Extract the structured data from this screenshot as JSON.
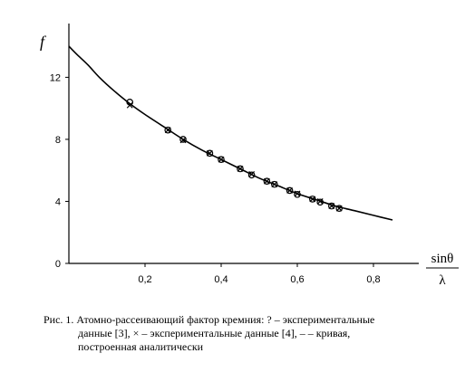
{
  "chart_data": {
    "type": "scatter",
    "xlabel": "sinθ/λ",
    "xlabel_num": "sinθ",
    "xlabel_den": "λ",
    "ylabel": "f",
    "xlim": [
      0,
      0.9
    ],
    "ylim": [
      0,
      15
    ],
    "x_ticks": [
      "0,2",
      "0,4",
      "0,6",
      "0,8"
    ],
    "x_tick_values": [
      0.2,
      0.4,
      0.6,
      0.8
    ],
    "y_ticks": [
      "0",
      "4",
      "8",
      "12"
    ],
    "y_tick_values": [
      0,
      4,
      8,
      12
    ],
    "grid": false,
    "series": [
      {
        "marker": "circle",
        "x": [
          0.16,
          0.26,
          0.3,
          0.37,
          0.4,
          0.45,
          0.48,
          0.52,
          0.54,
          0.58,
          0.6,
          0.64,
          0.66,
          0.69,
          0.71
        ],
        "y": [
          10.4,
          8.6,
          8.0,
          7.1,
          6.7,
          6.1,
          5.7,
          5.3,
          5.1,
          4.7,
          4.45,
          4.15,
          3.95,
          3.7,
          3.55
        ]
      },
      {
        "marker": "cross",
        "x": [
          0.16,
          0.26,
          0.3,
          0.37,
          0.4,
          0.45,
          0.48,
          0.52,
          0.54,
          0.58,
          0.6,
          0.64,
          0.66,
          0.69,
          0.71
        ],
        "y": [
          10.2,
          8.6,
          7.95,
          7.1,
          6.7,
          6.1,
          5.75,
          5.3,
          5.1,
          4.7,
          4.5,
          4.15,
          4.0,
          3.7,
          3.55
        ]
      },
      {
        "marker": "line",
        "x": [
          0.0,
          0.02,
          0.05,
          0.08,
          0.12,
          0.16,
          0.2,
          0.25,
          0.3,
          0.35,
          0.4,
          0.45,
          0.5,
          0.55,
          0.6,
          0.65,
          0.7,
          0.75,
          0.8,
          0.85
        ],
        "y": [
          14.0,
          13.5,
          12.8,
          12.0,
          11.1,
          10.3,
          9.6,
          8.8,
          8.0,
          7.3,
          6.7,
          6.1,
          5.5,
          5.0,
          4.5,
          4.1,
          3.7,
          3.4,
          3.1,
          2.8
        ]
      }
    ]
  },
  "caption": {
    "line1": "Рис. 1. Атомно-рассеивающий фактор кремния: ? – экспериментальные",
    "line2": "данные [3],  × – экспериментальные данные [4], – – кривая,",
    "line3": "построенная аналитически"
  }
}
